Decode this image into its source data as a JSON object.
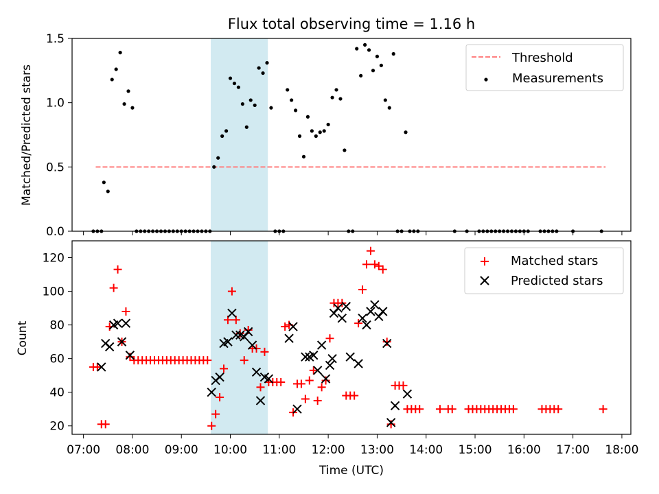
{
  "figure": {
    "title": "Flux total observing time = 1.16 h",
    "highlight_color": "#add8e6",
    "highlight_range": [
      "09:36",
      "10:46"
    ]
  },
  "chart_data": [
    {
      "type": "scatter",
      "panel": "top",
      "title": "Flux total observing time = 1.16 h",
      "xlabel": "",
      "ylabel": "Matched/Predicted stars",
      "ylim": [
        0,
        1.5
      ],
      "yticks": [
        "0.0",
        "0.5",
        "1.0",
        "1.5"
      ],
      "legend_position": "top-right",
      "threshold": {
        "name": "Threshold",
        "value": 0.5,
        "x_range": [
          "07:15",
          "17:40"
        ],
        "color": "#ff7f7f",
        "style": "dashed"
      },
      "series": [
        {
          "name": "Measurements",
          "color": "#000000",
          "marker": "dot",
          "points": [
            [
              "07:12",
              0
            ],
            [
              "07:17",
              0
            ],
            [
              "07:22",
              0
            ],
            [
              "07:25",
              0.38
            ],
            [
              "07:30",
              0.31
            ],
            [
              "07:35",
              1.18
            ],
            [
              "07:40",
              1.26
            ],
            [
              "07:45",
              1.39
            ],
            [
              "07:50",
              0.99
            ],
            [
              "07:55",
              1.09
            ],
            [
              "08:00",
              0.96
            ],
            [
              "08:05",
              0
            ],
            [
              "08:10",
              0
            ],
            [
              "08:15",
              0
            ],
            [
              "08:20",
              0
            ],
            [
              "08:25",
              0
            ],
            [
              "08:30",
              0
            ],
            [
              "08:35",
              0
            ],
            [
              "08:40",
              0
            ],
            [
              "08:45",
              0
            ],
            [
              "08:50",
              0
            ],
            [
              "08:55",
              0
            ],
            [
              "09:00",
              0
            ],
            [
              "09:05",
              0
            ],
            [
              "09:10",
              0
            ],
            [
              "09:15",
              0
            ],
            [
              "09:20",
              0
            ],
            [
              "09:25",
              0
            ],
            [
              "09:30",
              0
            ],
            [
              "09:35",
              0
            ],
            [
              "09:40",
              0.5
            ],
            [
              "09:45",
              0.57
            ],
            [
              "09:50",
              0.74
            ],
            [
              "09:55",
              0.78
            ],
            [
              "10:00",
              1.19
            ],
            [
              "10:05",
              1.15
            ],
            [
              "10:10",
              1.12
            ],
            [
              "10:15",
              0.99
            ],
            [
              "10:20",
              0.81
            ],
            [
              "10:25",
              1.02
            ],
            [
              "10:30",
              0.98
            ],
            [
              "10:35",
              1.27
            ],
            [
              "10:40",
              1.23
            ],
            [
              "10:45",
              1.31
            ],
            [
              "10:50",
              0.96
            ],
            [
              "10:55",
              0
            ],
            [
              "11:00",
              0
            ],
            [
              "11:05",
              0
            ],
            [
              "11:10",
              1.1
            ],
            [
              "11:15",
              1.02
            ],
            [
              "11:20",
              0.94
            ],
            [
              "11:25",
              0.74
            ],
            [
              "11:30",
              0.58
            ],
            [
              "11:35",
              0.89
            ],
            [
              "11:40",
              0.78
            ],
            [
              "11:45",
              0.74
            ],
            [
              "11:50",
              0.77
            ],
            [
              "11:55",
              0.78
            ],
            [
              "12:00",
              0.83
            ],
            [
              "12:05",
              1.04
            ],
            [
              "12:10",
              1.1
            ],
            [
              "12:15",
              1.03
            ],
            [
              "12:20",
              0.63
            ],
            [
              "12:25",
              0
            ],
            [
              "12:30",
              0
            ],
            [
              "12:35",
              1.42
            ],
            [
              "12:40",
              1.21
            ],
            [
              "12:45",
              1.45
            ],
            [
              "12:50",
              1.41
            ],
            [
              "12:55",
              1.25
            ],
            [
              "13:00",
              1.36
            ],
            [
              "13:05",
              1.29
            ],
            [
              "13:10",
              1.02
            ],
            [
              "13:15",
              0.96
            ],
            [
              "13:20",
              1.38
            ],
            [
              "13:25",
              0
            ],
            [
              "13:30",
              0
            ],
            [
              "13:35",
              0.77
            ],
            [
              "13:40",
              0
            ],
            [
              "13:45",
              0
            ],
            [
              "13:50",
              0
            ],
            [
              "14:35",
              0
            ],
            [
              "14:50",
              0
            ],
            [
              "15:05",
              0
            ],
            [
              "15:10",
              0
            ],
            [
              "15:15",
              0
            ],
            [
              "15:20",
              0
            ],
            [
              "15:25",
              0
            ],
            [
              "15:30",
              0
            ],
            [
              "15:35",
              0
            ],
            [
              "15:40",
              0
            ],
            [
              "15:45",
              0
            ],
            [
              "15:50",
              0
            ],
            [
              "15:55",
              0
            ],
            [
              "16:00",
              0
            ],
            [
              "16:05",
              0
            ],
            [
              "16:20",
              0
            ],
            [
              "16:25",
              0
            ],
            [
              "16:30",
              0
            ],
            [
              "16:35",
              0
            ],
            [
              "16:40",
              0
            ],
            [
              "17:00",
              0
            ],
            [
              "17:35",
              0
            ]
          ]
        }
      ]
    },
    {
      "type": "scatter",
      "panel": "bottom",
      "xlabel": "Time (UTC)",
      "ylabel": "Count",
      "ylim": [
        15,
        130
      ],
      "yticks": [
        "20",
        "40",
        "60",
        "80",
        "100",
        "120"
      ],
      "xticks": [
        "07:00",
        "08:00",
        "09:00",
        "10:00",
        "11:00",
        "12:00",
        "13:00",
        "14:00",
        "15:00",
        "16:00",
        "17:00",
        "18:00"
      ],
      "xlim": [
        "06:46",
        "18:11"
      ],
      "legend_position": "top-right",
      "series": [
        {
          "name": "Matched stars",
          "color": "#ff0000",
          "marker": "plus",
          "points": [
            [
              "07:12",
              55
            ],
            [
              "07:17",
              55
            ],
            [
              "07:22",
              21
            ],
            [
              "07:27",
              21
            ],
            [
              "07:32",
              79
            ],
            [
              "07:37",
              102
            ],
            [
              "07:42",
              113
            ],
            [
              "07:47",
              70
            ],
            [
              "07:52",
              88
            ],
            [
              "07:57",
              61
            ],
            [
              "08:02",
              59
            ],
            [
              "08:07",
              59
            ],
            [
              "08:12",
              59
            ],
            [
              "08:17",
              59
            ],
            [
              "08:22",
              59
            ],
            [
              "08:27",
              59
            ],
            [
              "08:32",
              59
            ],
            [
              "08:37",
              59
            ],
            [
              "08:42",
              59
            ],
            [
              "08:47",
              59
            ],
            [
              "08:52",
              59
            ],
            [
              "08:57",
              59
            ],
            [
              "09:02",
              59
            ],
            [
              "09:07",
              59
            ],
            [
              "09:12",
              59
            ],
            [
              "09:17",
              59
            ],
            [
              "09:22",
              59
            ],
            [
              "09:27",
              59
            ],
            [
              "09:32",
              59
            ],
            [
              "09:37",
              20
            ],
            [
              "09:42",
              27
            ],
            [
              "09:47",
              37
            ],
            [
              "09:52",
              54
            ],
            [
              "09:57",
              83
            ],
            [
              "10:02",
              100
            ],
            [
              "10:07",
              83
            ],
            [
              "10:12",
              75
            ],
            [
              "10:17",
              59
            ],
            [
              "10:22",
              77
            ],
            [
              "10:27",
              66
            ],
            [
              "10:32",
              66
            ],
            [
              "10:37",
              43
            ],
            [
              "10:42",
              64
            ],
            [
              "10:47",
              46
            ],
            [
              "10:52",
              46
            ],
            [
              "10:57",
              46
            ],
            [
              "11:02",
              46
            ],
            [
              "11:07",
              79
            ],
            [
              "11:12",
              80
            ],
            [
              "11:17",
              28
            ],
            [
              "11:22",
              45
            ],
            [
              "11:27",
              45
            ],
            [
              "11:32",
              36
            ],
            [
              "11:37",
              47
            ],
            [
              "11:42",
              53
            ],
            [
              "11:47",
              35
            ],
            [
              "11:52",
              43
            ],
            [
              "11:57",
              47
            ],
            [
              "12:02",
              72
            ],
            [
              "12:07",
              93
            ],
            [
              "12:12",
              93
            ],
            [
              "12:17",
              93
            ],
            [
              "12:22",
              38
            ],
            [
              "12:27",
              38
            ],
            [
              "12:32",
              38
            ],
            [
              "12:37",
              81
            ],
            [
              "12:42",
              101
            ],
            [
              "12:47",
              116
            ],
            [
              "12:52",
              124
            ],
            [
              "12:57",
              116
            ],
            [
              "13:02",
              115
            ],
            [
              "13:07",
              113
            ],
            [
              "13:12",
              70
            ],
            [
              "13:17",
              21
            ],
            [
              "13:22",
              44
            ],
            [
              "13:27",
              44
            ],
            [
              "13:32",
              44
            ],
            [
              "13:37",
              30
            ],
            [
              "13:42",
              30
            ],
            [
              "13:47",
              30
            ],
            [
              "13:52",
              30
            ],
            [
              "14:17",
              30
            ],
            [
              "14:27",
              30
            ],
            [
              "14:32",
              30
            ],
            [
              "14:52",
              30
            ],
            [
              "14:57",
              30
            ],
            [
              "15:02",
              30
            ],
            [
              "15:07",
              30
            ],
            [
              "15:12",
              30
            ],
            [
              "15:17",
              30
            ],
            [
              "15:22",
              30
            ],
            [
              "15:27",
              30
            ],
            [
              "15:32",
              30
            ],
            [
              "15:37",
              30
            ],
            [
              "15:42",
              30
            ],
            [
              "15:47",
              30
            ],
            [
              "16:22",
              30
            ],
            [
              "16:27",
              30
            ],
            [
              "16:32",
              30
            ],
            [
              "16:37",
              30
            ],
            [
              "16:42",
              30
            ],
            [
              "17:37",
              30
            ]
          ]
        },
        {
          "name": "Predicted stars",
          "color": "#000000",
          "marker": "x",
          "points": [
            [
              "07:22",
              55
            ],
            [
              "07:27",
              69
            ],
            [
              "07:32",
              67
            ],
            [
              "07:37",
              80
            ],
            [
              "07:42",
              81
            ],
            [
              "07:47",
              70
            ],
            [
              "07:52",
              81
            ],
            [
              "07:57",
              62
            ],
            [
              "09:37",
              40
            ],
            [
              "09:42",
              47
            ],
            [
              "09:47",
              49
            ],
            [
              "09:52",
              69
            ],
            [
              "09:57",
              70
            ],
            [
              "10:02",
              87
            ],
            [
              "10:07",
              74
            ],
            [
              "10:12",
              74
            ],
            [
              "10:17",
              73
            ],
            [
              "10:22",
              76
            ],
            [
              "10:27",
              68
            ],
            [
              "10:32",
              52
            ],
            [
              "10:37",
              35
            ],
            [
              "10:42",
              49
            ],
            [
              "10:47",
              48
            ],
            [
              "11:12",
              72
            ],
            [
              "11:17",
              79
            ],
            [
              "11:22",
              30
            ],
            [
              "11:32",
              61
            ],
            [
              "11:37",
              61
            ],
            [
              "11:42",
              62
            ],
            [
              "11:47",
              53
            ],
            [
              "11:52",
              68
            ],
            [
              "11:57",
              48
            ],
            [
              "12:02",
              56
            ],
            [
              "12:05",
              60
            ],
            [
              "12:07",
              87
            ],
            [
              "12:12",
              90
            ],
            [
              "12:17",
              84
            ],
            [
              "12:22",
              91
            ],
            [
              "12:27",
              61
            ],
            [
              "12:37",
              57
            ],
            [
              "12:42",
              84
            ],
            [
              "12:47",
              80
            ],
            [
              "12:52",
              88
            ],
            [
              "12:57",
              92
            ],
            [
              "13:02",
              85
            ],
            [
              "13:07",
              88
            ],
            [
              "13:12",
              69
            ],
            [
              "13:17",
              22
            ],
            [
              "13:22",
              32
            ],
            [
              "13:37",
              39
            ]
          ]
        }
      ]
    }
  ]
}
